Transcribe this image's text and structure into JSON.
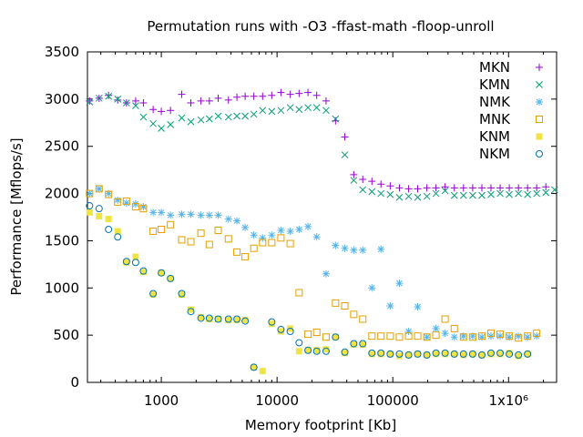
{
  "chart_data": {
    "type": "scatter",
    "title": "Permutation runs with -O3 -ffast-math -floop-unroll",
    "xlabel": "Memory footprint [Kb]",
    "ylabel": "Performance [Mflops/s]",
    "xscale": "log",
    "xlim": [
      230,
      2600000
    ],
    "ylim": [
      0,
      3500
    ],
    "grid": false,
    "legend_position": "top-right",
    "x_ticks": [
      {
        "value": 1000,
        "label": "1000"
      },
      {
        "value": 10000,
        "label": "10000"
      },
      {
        "value": 100000,
        "label": "100000"
      },
      {
        "value": 1000000,
        "label": "1x10⁶"
      }
    ],
    "y_ticks": [
      0,
      500,
      1000,
      1500,
      2000,
      2500,
      3000,
      3500
    ],
    "series": [
      {
        "name": "MKN",
        "marker": "plus",
        "color": "#9400d3",
        "points": [
          [
            240,
            2980
          ],
          [
            290,
            3010
          ],
          [
            350,
            3040
          ],
          [
            420,
            2990
          ],
          [
            500,
            2960
          ],
          [
            600,
            2980
          ],
          [
            700,
            2960
          ],
          [
            850,
            2890
          ],
          [
            1000,
            2870
          ],
          [
            1200,
            2880
          ],
          [
            1500,
            3050
          ],
          [
            1800,
            2960
          ],
          [
            2200,
            2980
          ],
          [
            2600,
            2980
          ],
          [
            3100,
            3010
          ],
          [
            3800,
            2990
          ],
          [
            4500,
            3020
          ],
          [
            5300,
            3030
          ],
          [
            6300,
            3030
          ],
          [
            7500,
            3030
          ],
          [
            9000,
            3040
          ],
          [
            10800,
            3070
          ],
          [
            13000,
            3050
          ],
          [
            15500,
            3060
          ],
          [
            18500,
            3070
          ],
          [
            22000,
            3040
          ],
          [
            26500,
            2980
          ],
          [
            32000,
            2770
          ],
          [
            38500,
            2600
          ],
          [
            46000,
            2200
          ],
          [
            55000,
            2150
          ],
          [
            66000,
            2130
          ],
          [
            79000,
            2100
          ],
          [
            95000,
            2080
          ],
          [
            114000,
            2060
          ],
          [
            137000,
            2050
          ],
          [
            164000,
            2050
          ],
          [
            197000,
            2060
          ],
          [
            236000,
            2060
          ],
          [
            283000,
            2070
          ],
          [
            340000,
            2060
          ],
          [
            408000,
            2060
          ],
          [
            490000,
            2060
          ],
          [
            588000,
            2060
          ],
          [
            705000,
            2060
          ],
          [
            846000,
            2060
          ],
          [
            1015000,
            2060
          ],
          [
            1218000,
            2060
          ],
          [
            1460000,
            2060
          ],
          [
            1750000,
            2060
          ],
          [
            2100000,
            2070
          ]
        ]
      },
      {
        "name": "KMN",
        "marker": "cross",
        "color": "#009e73",
        "points": [
          [
            240,
            2970
          ],
          [
            290,
            3010
          ],
          [
            350,
            3030
          ],
          [
            420,
            3000
          ],
          [
            500,
            2960
          ],
          [
            600,
            2930
          ],
          [
            700,
            2810
          ],
          [
            850,
            2740
          ],
          [
            1000,
            2690
          ],
          [
            1200,
            2730
          ],
          [
            1500,
            2800
          ],
          [
            1800,
            2760
          ],
          [
            2200,
            2780
          ],
          [
            2600,
            2790
          ],
          [
            3100,
            2820
          ],
          [
            3800,
            2810
          ],
          [
            4500,
            2820
          ],
          [
            5300,
            2820
          ],
          [
            6300,
            2840
          ],
          [
            7500,
            2880
          ],
          [
            9000,
            2870
          ],
          [
            10800,
            2880
          ],
          [
            13000,
            2910
          ],
          [
            15500,
            2890
          ],
          [
            18500,
            2910
          ],
          [
            22000,
            2910
          ],
          [
            26500,
            2880
          ],
          [
            32000,
            2790
          ],
          [
            38500,
            2410
          ],
          [
            46000,
            2140
          ],
          [
            55000,
            2040
          ],
          [
            66000,
            2020
          ],
          [
            79000,
            2000
          ],
          [
            95000,
            1990
          ],
          [
            114000,
            1960
          ],
          [
            137000,
            1970
          ],
          [
            164000,
            1960
          ],
          [
            197000,
            1970
          ],
          [
            236000,
            2000
          ],
          [
            283000,
            2030
          ],
          [
            340000,
            1980
          ],
          [
            408000,
            1980
          ],
          [
            490000,
            1980
          ],
          [
            588000,
            1980
          ],
          [
            705000,
            1990
          ],
          [
            846000,
            2000
          ],
          [
            1015000,
            1990
          ],
          [
            1218000,
            2000
          ],
          [
            1460000,
            1990
          ],
          [
            1750000,
            2000
          ],
          [
            2100000,
            2010
          ],
          [
            2500000,
            2040
          ]
        ]
      },
      {
        "name": "NMK",
        "marker": "star",
        "color": "#56b4e9",
        "points": [
          [
            240,
            2000
          ],
          [
            290,
            2050
          ],
          [
            350,
            2000
          ],
          [
            420,
            1930
          ],
          [
            500,
            1900
          ],
          [
            600,
            1890
          ],
          [
            700,
            1860
          ],
          [
            850,
            1800
          ],
          [
            1000,
            1800
          ],
          [
            1200,
            1770
          ],
          [
            1500,
            1780
          ],
          [
            1800,
            1780
          ],
          [
            2200,
            1770
          ],
          [
            2600,
            1770
          ],
          [
            3100,
            1770
          ],
          [
            3800,
            1730
          ],
          [
            4500,
            1710
          ],
          [
            5300,
            1640
          ],
          [
            6300,
            1560
          ],
          [
            7500,
            1530
          ],
          [
            9000,
            1560
          ],
          [
            10800,
            1610
          ],
          [
            13000,
            1600
          ],
          [
            15500,
            1620
          ],
          [
            18500,
            1650
          ],
          [
            22000,
            1540
          ],
          [
            26500,
            1150
          ],
          [
            32000,
            1450
          ],
          [
            38500,
            1420
          ],
          [
            46000,
            1400
          ],
          [
            55000,
            1400
          ],
          [
            66000,
            1000
          ],
          [
            79000,
            1410
          ],
          [
            95000,
            810
          ],
          [
            114000,
            1050
          ],
          [
            137000,
            540
          ],
          [
            164000,
            800
          ],
          [
            197000,
            480
          ],
          [
            236000,
            570
          ],
          [
            283000,
            520
          ],
          [
            340000,
            480
          ],
          [
            408000,
            490
          ],
          [
            490000,
            490
          ],
          [
            588000,
            480
          ],
          [
            705000,
            490
          ],
          [
            846000,
            490
          ],
          [
            1015000,
            480
          ],
          [
            1218000,
            490
          ],
          [
            1460000,
            480
          ],
          [
            1750000,
            490
          ]
        ]
      },
      {
        "name": "MNK",
        "marker": "square",
        "color": "#e69f00",
        "points": [
          [
            240,
            2000
          ],
          [
            290,
            2050
          ],
          [
            350,
            1990
          ],
          [
            420,
            1910
          ],
          [
            500,
            1920
          ],
          [
            600,
            1860
          ],
          [
            700,
            1840
          ],
          [
            850,
            1600
          ],
          [
            1000,
            1620
          ],
          [
            1200,
            1670
          ],
          [
            1500,
            1510
          ],
          [
            1800,
            1490
          ],
          [
            2200,
            1580
          ],
          [
            2600,
            1460
          ],
          [
            3100,
            1610
          ],
          [
            3800,
            1520
          ],
          [
            4500,
            1380
          ],
          [
            5300,
            1330
          ],
          [
            6300,
            1420
          ],
          [
            7500,
            1480
          ],
          [
            9000,
            1480
          ],
          [
            10800,
            1530
          ],
          [
            13000,
            1470
          ],
          [
            15500,
            950
          ],
          [
            18500,
            510
          ],
          [
            22000,
            530
          ],
          [
            26500,
            480
          ],
          [
            32000,
            840
          ],
          [
            38500,
            810
          ],
          [
            46000,
            720
          ],
          [
            55000,
            670
          ],
          [
            66000,
            490
          ],
          [
            79000,
            490
          ],
          [
            95000,
            490
          ],
          [
            114000,
            480
          ],
          [
            137000,
            490
          ],
          [
            164000,
            490
          ],
          [
            197000,
            480
          ],
          [
            236000,
            500
          ],
          [
            283000,
            670
          ],
          [
            340000,
            570
          ],
          [
            408000,
            480
          ],
          [
            490000,
            480
          ],
          [
            588000,
            490
          ],
          [
            705000,
            520
          ],
          [
            846000,
            510
          ],
          [
            1015000,
            490
          ],
          [
            1218000,
            470
          ],
          [
            1460000,
            490
          ],
          [
            1750000,
            520
          ]
        ]
      },
      {
        "name": "KNM",
        "marker": "filled-square",
        "color": "#f0e442",
        "points": [
          [
            240,
            1800
          ],
          [
            290,
            1760
          ],
          [
            350,
            1730
          ],
          [
            420,
            1600
          ],
          [
            500,
            1270
          ],
          [
            600,
            1330
          ],
          [
            700,
            1170
          ],
          [
            850,
            930
          ],
          [
            1000,
            1160
          ],
          [
            1200,
            1100
          ],
          [
            1500,
            930
          ],
          [
            1800,
            770
          ],
          [
            2200,
            690
          ],
          [
            2600,
            670
          ],
          [
            3100,
            670
          ],
          [
            3800,
            660
          ],
          [
            4500,
            660
          ],
          [
            5300,
            660
          ],
          [
            6300,
            160
          ],
          [
            7500,
            120
          ],
          [
            9000,
            620
          ],
          [
            10800,
            540
          ],
          [
            13000,
            570
          ],
          [
            15500,
            330
          ],
          [
            18500,
            340
          ],
          [
            22000,
            340
          ],
          [
            26500,
            350
          ],
          [
            32000,
            480
          ],
          [
            38500,
            310
          ],
          [
            46000,
            400
          ],
          [
            55000,
            400
          ],
          [
            66000,
            300
          ],
          [
            79000,
            300
          ],
          [
            95000,
            300
          ],
          [
            114000,
            280
          ],
          [
            137000,
            290
          ],
          [
            164000,
            300
          ],
          [
            197000,
            290
          ],
          [
            236000,
            300
          ],
          [
            283000,
            300
          ],
          [
            340000,
            300
          ],
          [
            408000,
            290
          ],
          [
            490000,
            300
          ],
          [
            588000,
            290
          ],
          [
            705000,
            300
          ],
          [
            846000,
            300
          ],
          [
            1015000,
            310
          ],
          [
            1218000,
            280
          ],
          [
            1460000,
            300
          ]
        ]
      },
      {
        "name": "NKM",
        "marker": "circle",
        "color": "#0072b2",
        "points": [
          [
            240,
            1870
          ],
          [
            290,
            1840
          ],
          [
            350,
            1620
          ],
          [
            420,
            1540
          ],
          [
            500,
            1280
          ],
          [
            600,
            1270
          ],
          [
            700,
            1180
          ],
          [
            850,
            940
          ],
          [
            1000,
            1160
          ],
          [
            1200,
            1100
          ],
          [
            1500,
            940
          ],
          [
            1800,
            750
          ],
          [
            2200,
            680
          ],
          [
            2600,
            680
          ],
          [
            3100,
            670
          ],
          [
            3800,
            670
          ],
          [
            4500,
            670
          ],
          [
            5300,
            650
          ],
          [
            6300,
            160
          ],
          [
            9000,
            640
          ],
          [
            10800,
            560
          ],
          [
            13000,
            540
          ],
          [
            15500,
            420
          ],
          [
            18500,
            340
          ],
          [
            22000,
            330
          ],
          [
            26500,
            330
          ],
          [
            32000,
            480
          ],
          [
            38500,
            320
          ],
          [
            46000,
            410
          ],
          [
            55000,
            410
          ],
          [
            66000,
            310
          ],
          [
            79000,
            310
          ],
          [
            95000,
            300
          ],
          [
            114000,
            300
          ],
          [
            137000,
            290
          ],
          [
            164000,
            300
          ],
          [
            197000,
            290
          ],
          [
            236000,
            310
          ],
          [
            283000,
            310
          ],
          [
            340000,
            300
          ],
          [
            408000,
            300
          ],
          [
            490000,
            300
          ],
          [
            588000,
            290
          ],
          [
            705000,
            310
          ],
          [
            846000,
            310
          ],
          [
            1015000,
            300
          ],
          [
            1218000,
            290
          ],
          [
            1460000,
            300
          ]
        ]
      }
    ]
  }
}
